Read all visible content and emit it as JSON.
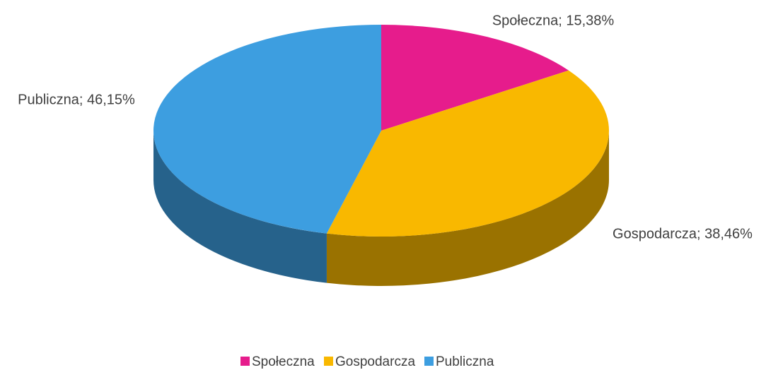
{
  "chart_data": {
    "type": "pie3d",
    "categories": [
      "Społeczna",
      "Gospodarcza",
      "Publiczna"
    ],
    "values": [
      15.38,
      38.46,
      46.15
    ],
    "value_labels": [
      "Społeczna; 15,38%",
      "Gospodarcza; 38,46%",
      "Publiczna; 46,15%"
    ],
    "colors": [
      "#e61c8c",
      "#f9b800",
      "#3d9ee0"
    ],
    "legend": "bottom"
  }
}
